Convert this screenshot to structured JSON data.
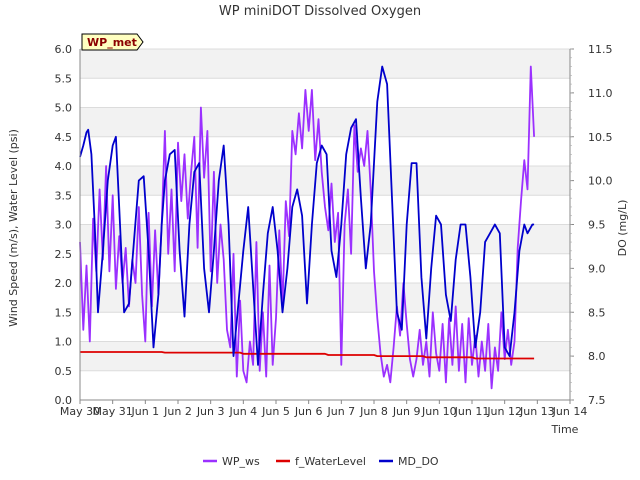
{
  "chart_data": {
    "type": "line",
    "title": "WP miniDOT Dissolved Oxygen",
    "badge": "WP_met",
    "xlabel": "Time",
    "ylabel_left": "Wind Speed (m/s), Water Level (psi)",
    "ylabel_right": "DO (mg/L)",
    "xlim": [
      0,
      15
    ],
    "ylim_left": [
      0.0,
      6.0
    ],
    "ylim_right": [
      7.5,
      11.5
    ],
    "x_tick_labels": [
      "May 30",
      "May 31",
      "Jun 1",
      "Jun 2",
      "Jun 3",
      "Jun 4",
      "Jun 5",
      "Jun 6",
      "Jun 7",
      "Jun 8",
      "Jun 9",
      "Jun 10",
      "Jun 11",
      "Jun 12",
      "Jun 13",
      "Jun 14"
    ],
    "y_left_ticks": [
      "0.0",
      "0.5",
      "1.0",
      "1.5",
      "2.0",
      "2.5",
      "3.0",
      "3.5",
      "4.0",
      "4.5",
      "5.0",
      "5.5",
      "6.0"
    ],
    "y_right_ticks": [
      "7.5",
      "8.0",
      "8.5",
      "9.0",
      "9.5",
      "10.0",
      "10.5",
      "11.0",
      "11.5"
    ],
    "grid": true,
    "legend_position": "bottom",
    "x_units": "days since May 30",
    "series": [
      {
        "name": "WP_ws",
        "axis": "left",
        "color": "#9b30ff",
        "x": [
          0.0,
          0.1,
          0.2,
          0.3,
          0.4,
          0.5,
          0.6,
          0.7,
          0.8,
          0.9,
          1.0,
          1.1,
          1.2,
          1.3,
          1.4,
          1.5,
          1.6,
          1.7,
          1.8,
          1.9,
          2.0,
          2.1,
          2.2,
          2.3,
          2.4,
          2.5,
          2.6,
          2.7,
          2.8,
          2.9,
          3.0,
          3.1,
          3.2,
          3.3,
          3.4,
          3.5,
          3.6,
          3.7,
          3.8,
          3.9,
          4.0,
          4.1,
          4.2,
          4.3,
          4.4,
          4.5,
          4.6,
          4.7,
          4.8,
          4.9,
          5.0,
          5.1,
          5.2,
          5.3,
          5.4,
          5.5,
          5.6,
          5.7,
          5.8,
          5.9,
          6.0,
          6.1,
          6.2,
          6.3,
          6.4,
          6.5,
          6.6,
          6.7,
          6.8,
          6.9,
          7.0,
          7.1,
          7.2,
          7.3,
          7.4,
          7.5,
          7.6,
          7.7,
          7.8,
          7.9,
          8.0,
          8.1,
          8.2,
          8.3,
          8.4,
          8.5,
          8.6,
          8.7,
          8.8,
          8.9,
          9.0,
          9.1,
          9.2,
          9.3,
          9.4,
          9.5,
          9.6,
          9.7,
          9.8,
          9.9,
          10.0,
          10.1,
          10.2,
          10.3,
          10.4,
          10.5,
          10.6,
          10.7,
          10.8,
          10.9,
          11.0,
          11.1,
          11.2,
          11.3,
          11.4,
          11.5,
          11.6,
          11.7,
          11.8,
          11.9,
          12.0,
          12.1,
          12.2,
          12.3,
          12.4,
          12.5,
          12.6,
          12.7,
          12.8,
          12.9,
          13.0,
          13.1,
          13.2,
          13.3,
          13.4,
          13.5,
          13.6,
          13.7,
          13.8,
          13.9
        ],
        "values": [
          2.7,
          1.2,
          2.3,
          1.0,
          3.1,
          2.2,
          3.6,
          2.4,
          4.0,
          2.2,
          3.5,
          1.9,
          2.8,
          2.0,
          2.6,
          1.6,
          2.4,
          2.0,
          3.3,
          1.8,
          1.0,
          3.2,
          1.6,
          2.9,
          1.8,
          3.0,
          4.6,
          2.5,
          3.6,
          2.2,
          4.4,
          3.4,
          4.2,
          3.1,
          3.9,
          4.5,
          2.6,
          5.0,
          3.8,
          4.6,
          2.2,
          3.9,
          2.0,
          3.0,
          2.4,
          1.2,
          0.9,
          2.5,
          0.4,
          1.7,
          0.5,
          0.3,
          1.0,
          0.6,
          2.7,
          0.5,
          1.5,
          0.4,
          2.3,
          0.6,
          1.4,
          2.9,
          1.6,
          3.4,
          2.8,
          4.6,
          4.2,
          4.9,
          4.3,
          5.3,
          4.6,
          5.3,
          4.1,
          4.8,
          3.9,
          3.3,
          2.9,
          3.7,
          2.7,
          3.2,
          0.6,
          3.0,
          3.6,
          2.5,
          4.7,
          3.9,
          4.3,
          4.0,
          4.6,
          3.6,
          2.2,
          1.4,
          0.8,
          0.4,
          0.6,
          0.3,
          0.9,
          1.6,
          1.1,
          2.0,
          1.3,
          0.7,
          0.4,
          0.7,
          1.2,
          0.6,
          1.0,
          0.4,
          1.5,
          0.8,
          0.5,
          1.3,
          0.3,
          1.4,
          0.6,
          1.6,
          0.5,
          1.3,
          0.3,
          1.4,
          0.6,
          1.1,
          0.4,
          1.0,
          0.5,
          1.3,
          0.2,
          0.9,
          0.5,
          1.5,
          0.7,
          1.2,
          0.6,
          1.0,
          2.6,
          3.4,
          4.1,
          3.6,
          5.7,
          4.5
        ]
      },
      {
        "name": "f_WaterLevel",
        "axis": "left",
        "color": "#dd0000",
        "x": [
          0.0,
          2.5,
          2.6,
          4.9,
          5.0,
          7.5,
          7.6,
          9.0,
          9.1,
          10.5,
          10.6,
          12.0,
          12.1,
          13.9
        ],
        "values": [
          0.82,
          0.82,
          0.81,
          0.81,
          0.79,
          0.79,
          0.77,
          0.77,
          0.75,
          0.75,
          0.73,
          0.73,
          0.71,
          0.71
        ]
      },
      {
        "name": "MD_DO",
        "axis": "right",
        "color": "#0000cc",
        "x": [
          0.0,
          0.1,
          0.2,
          0.25,
          0.35,
          0.45,
          0.55,
          0.7,
          0.85,
          1.0,
          1.1,
          1.2,
          1.35,
          1.5,
          1.65,
          1.8,
          1.95,
          2.1,
          2.25,
          2.4,
          2.5,
          2.6,
          2.75,
          2.9,
          3.05,
          3.2,
          3.35,
          3.5,
          3.65,
          3.8,
          3.95,
          4.1,
          4.25,
          4.4,
          4.55,
          4.7,
          4.85,
          5.0,
          5.15,
          5.3,
          5.45,
          5.6,
          5.75,
          5.9,
          6.05,
          6.2,
          6.35,
          6.5,
          6.65,
          6.8,
          6.95,
          7.1,
          7.25,
          7.4,
          7.55,
          7.7,
          7.85,
          8.0,
          8.15,
          8.3,
          8.45,
          8.6,
          8.75,
          8.9,
          9.0,
          9.1,
          9.25,
          9.4,
          9.55,
          9.7,
          9.85,
          10.0,
          10.15,
          10.3,
          10.45,
          10.6,
          10.75,
          10.9,
          11.05,
          11.2,
          11.35,
          11.5,
          11.65,
          11.8,
          11.95,
          12.1,
          12.25,
          12.4,
          12.55,
          12.7,
          12.85,
          13.0,
          13.15,
          13.3,
          13.45,
          13.6,
          13.7,
          13.85,
          13.9
        ],
        "values": [
          10.27,
          10.4,
          10.55,
          10.58,
          10.3,
          9.5,
          8.5,
          9.2,
          10.0,
          10.4,
          10.5,
          9.7,
          8.5,
          8.6,
          9.3,
          10.0,
          10.05,
          9.2,
          8.1,
          8.7,
          9.5,
          10.0,
          10.3,
          10.35,
          9.2,
          8.45,
          9.5,
          10.1,
          10.2,
          9.0,
          8.5,
          9.2,
          10.0,
          10.4,
          9.5,
          8.0,
          8.6,
          9.2,
          9.7,
          8.8,
          7.9,
          8.7,
          9.4,
          9.7,
          9.2,
          8.5,
          9.0,
          9.7,
          9.9,
          9.6,
          8.6,
          9.5,
          10.2,
          10.4,
          10.3,
          9.2,
          8.9,
          9.5,
          10.3,
          10.6,
          10.7,
          9.8,
          9.0,
          9.5,
          10.2,
          10.9,
          11.3,
          11.1,
          9.8,
          8.5,
          8.3,
          9.5,
          10.2,
          10.2,
          8.9,
          8.2,
          9.0,
          9.6,
          9.5,
          8.7,
          8.4,
          9.1,
          9.5,
          9.5,
          8.9,
          8.1,
          8.5,
          9.3,
          9.4,
          9.5,
          9.4,
          8.1,
          8.0,
          8.5,
          9.2,
          9.5,
          9.4,
          9.5,
          9.5
        ]
      }
    ]
  }
}
